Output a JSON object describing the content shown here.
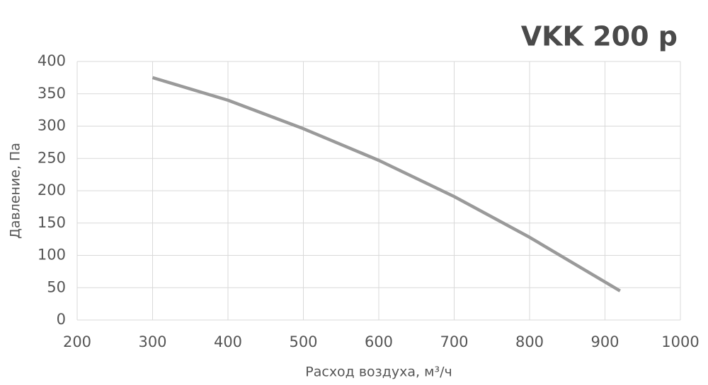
{
  "chart_data": {
    "type": "line",
    "title": "VKK 200 p",
    "x_label": "Расход воздуха, м³/ч",
    "y_label": "Давление, Па",
    "series": [
      {
        "name": "VKK 200 p",
        "color": "#9a9a9a",
        "x": [
          300,
          400,
          500,
          600,
          700,
          800,
          920
        ],
        "values": [
          375,
          340,
          296,
          247,
          191,
          128,
          45
        ]
      }
    ],
    "xlim": [
      200,
      1000
    ],
    "xticks": [
      200,
      300,
      400,
      500,
      600,
      700,
      800,
      900,
      1000
    ],
    "ylim": [
      0,
      400
    ],
    "yticks": [
      0,
      50,
      100,
      150,
      200,
      250,
      300,
      350,
      400
    ],
    "grid": true
  }
}
